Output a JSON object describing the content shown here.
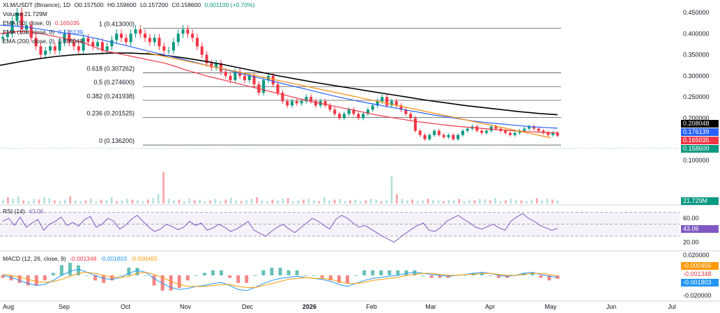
{
  "legend": {
    "symbol": "XLM/USDT (Binance), 1D",
    "o": "O0.157500",
    "h": "H0.159600",
    "l": "L0.157200",
    "c": "C0.158600",
    "chg": "0.001100 (+0.70%)",
    "volume": "Volume 21.729M",
    "ema50": "EMA (50, close, 0)",
    "ema50_val": "0.165035",
    "ema100": "EMA (100, close, 0)",
    "ema100_val": "0.176139",
    "ema200": "EMA (200, close, 0)",
    "ema200_val": "0.208048",
    "rsi": "RSI (14)",
    "rsi_val": "43.06",
    "macd": "MACD (12, 26, close, 9)",
    "macd_hist": "-0.001348",
    "macd_line": "-0.001803",
    "macd_signal": "-0.000455"
  },
  "tags": {
    "ema200": "0.208048",
    "ema100": "0.176139",
    "ema50": "0.165035",
    "close": "0.158600",
    "volume": "21.729M",
    "rsi": "43.06",
    "macd_signal": "-0.000455",
    "macd_hist": "-0.001348",
    "macd_line": "-0.001803"
  },
  "colors": {
    "up": "#089981",
    "down": "#f23645",
    "ema50": "#f23645",
    "ema100": "#2962ff",
    "ema200": "#000000",
    "trend": "#f7931a",
    "rsi": "#7e57c2",
    "macd": "#2196f3",
    "signal": "#ff9800"
  },
  "chart_data": {
    "type": "candlestick",
    "price_axis": [
      "0.450000",
      "0.400000",
      "0.350000",
      "0.300000",
      "0.250000",
      "0.200000",
      "0.150000",
      "0.100000"
    ],
    "price_axis_values": [
      0.45,
      0.4,
      0.35,
      0.3,
      0.25,
      0.2,
      0.15,
      0.1
    ],
    "x_labels": [
      "Aug",
      "Sep",
      "Oct",
      "Nov",
      "Dec",
      "2026",
      "Feb",
      "Mar",
      "Apr",
      "May",
      "Jun",
      "Jul"
    ],
    "fib_levels": [
      {
        "label": "1 (0.413000)",
        "value": 0.413
      },
      {
        "label": "0.618 (0.307262)",
        "value": 0.307262
      },
      {
        "label": "0.5 (0.274600)",
        "value": 0.2746
      },
      {
        "label": "0.382 (0.241938)",
        "value": 0.241938
      },
      {
        "label": "0.236 (0.201525)",
        "value": 0.201525
      },
      {
        "label": "0 (0.136200)",
        "value": 0.1362
      }
    ],
    "rsi_axis": [
      "60.00",
      "40.00",
      "20.00"
    ],
    "rsi_axis_values": [
      60,
      40,
      20
    ],
    "rsi_bands": [
      70,
      50,
      30
    ],
    "macd_axis": [
      "0.020000",
      "-0.020000"
    ],
    "macd_axis_values": [
      0.02,
      -0.02
    ],
    "close_price": 0.1586,
    "closes": [
      0.392,
      0.4,
      0.43,
      0.45,
      0.41,
      0.42,
      0.39,
      0.37,
      0.35,
      0.36,
      0.37,
      0.36,
      0.38,
      0.4,
      0.38,
      0.37,
      0.36,
      0.39,
      0.38,
      0.37,
      0.38,
      0.36,
      0.37,
      0.385,
      0.4,
      0.39,
      0.38,
      0.4,
      0.41,
      0.4,
      0.39,
      0.38,
      0.39,
      0.37,
      0.36,
      0.36,
      0.38,
      0.4,
      0.41,
      0.4,
      0.39,
      0.37,
      0.35,
      0.33,
      0.32,
      0.33,
      0.31,
      0.3,
      0.29,
      0.31,
      0.3,
      0.29,
      0.3,
      0.28,
      0.26,
      0.29,
      0.3,
      0.28,
      0.26,
      0.24,
      0.23,
      0.24,
      0.235,
      0.24,
      0.25,
      0.24,
      0.23,
      0.24,
      0.23,
      0.22,
      0.21,
      0.2,
      0.21,
      0.22,
      0.21,
      0.2,
      0.21,
      0.22,
      0.23,
      0.24,
      0.25,
      0.23,
      0.24,
      0.23,
      0.22,
      0.21,
      0.2,
      0.17,
      0.16,
      0.15,
      0.16,
      0.17,
      0.16,
      0.155,
      0.16,
      0.15,
      0.16,
      0.17,
      0.175,
      0.18,
      0.17,
      0.165,
      0.17,
      0.18,
      0.175,
      0.17,
      0.165,
      0.16,
      0.165,
      0.17,
      0.175,
      0.18,
      0.175,
      0.17,
      0.165,
      0.16,
      0.165,
      0.1586
    ],
    "ema50": [
      0.4,
      0.404,
      0.405,
      0.404,
      0.4,
      0.395,
      0.39,
      0.385,
      0.38,
      0.37,
      0.36,
      0.355,
      0.35,
      0.345,
      0.34,
      0.335,
      0.33,
      0.322,
      0.314,
      0.307,
      0.3,
      0.294,
      0.288,
      0.282,
      0.276,
      0.27,
      0.264,
      0.258,
      0.252,
      0.246,
      0.24,
      0.235,
      0.23,
      0.225,
      0.22,
      0.215,
      0.21,
      0.205,
      0.201,
      0.197,
      0.193,
      0.19,
      0.187,
      0.184,
      0.181,
      0.179,
      0.177,
      0.175,
      0.173,
      0.171,
      0.17,
      0.168,
      0.167,
      0.166,
      0.165035
    ],
    "ema100": [
      0.42,
      0.418,
      0.415,
      0.41,
      0.405,
      0.4,
      0.395,
      0.388,
      0.38,
      0.372,
      0.364,
      0.356,
      0.348,
      0.34,
      0.332,
      0.324,
      0.316,
      0.308,
      0.3,
      0.292,
      0.284,
      0.276,
      0.268,
      0.26,
      0.252,
      0.245,
      0.238,
      0.232,
      0.226,
      0.22,
      0.214,
      0.208,
      0.203,
      0.198,
      0.193,
      0.189,
      0.186,
      0.183,
      0.18,
      0.178,
      0.176139
    ],
    "ema200": [
      0.325,
      0.333,
      0.34,
      0.346,
      0.35,
      0.352,
      0.354,
      0.354,
      0.352,
      0.348,
      0.342,
      0.335,
      0.327,
      0.318,
      0.309,
      0.3,
      0.292,
      0.284,
      0.277,
      0.27,
      0.263,
      0.256,
      0.249,
      0.242,
      0.236,
      0.23,
      0.225,
      0.22,
      0.215,
      0.211,
      0.208048
    ],
    "trendline": [
      0.355,
      0.1535
    ],
    "volume": [
      5,
      8,
      6,
      9,
      4,
      3,
      6,
      5,
      8,
      7,
      4,
      3,
      5,
      9,
      4,
      3,
      4,
      6,
      3,
      5,
      4,
      8,
      3,
      4,
      6,
      5,
      4,
      3,
      5,
      7,
      12,
      40,
      6,
      4,
      5,
      3,
      6,
      4,
      5,
      3,
      4,
      6,
      3,
      5,
      7,
      4,
      3,
      5,
      6,
      8,
      4,
      3,
      5,
      4,
      6,
      7,
      3,
      4,
      5,
      6,
      4,
      3,
      8,
      4,
      5,
      6,
      3,
      4,
      5,
      3,
      4,
      6,
      5,
      3,
      4,
      35,
      12,
      6,
      4,
      5,
      3,
      4,
      6,
      5,
      4,
      3,
      5,
      4,
      6,
      3,
      5,
      4,
      6,
      5,
      4,
      7,
      3,
      4,
      6,
      5,
      4,
      3,
      5,
      7,
      4,
      6,
      5,
      4
    ],
    "rsi": [
      55,
      60,
      48,
      62,
      45,
      52,
      58,
      40,
      50,
      55,
      62,
      48,
      53,
      47,
      58,
      63,
      45,
      50,
      60,
      55,
      42,
      48,
      58,
      65,
      55,
      45,
      38,
      42,
      50,
      46,
      41,
      45,
      55,
      48,
      52,
      40,
      44,
      50,
      45,
      38,
      42,
      48,
      55,
      40,
      35,
      30,
      38,
      45,
      50,
      42,
      36,
      44,
      52,
      60,
      55,
      48,
      42,
      58,
      65,
      60,
      52,
      45,
      48,
      42,
      36,
      30,
      25,
      20,
      28,
      35,
      42,
      48,
      52,
      40,
      38,
      45,
      55,
      60,
      65,
      58,
      52,
      45,
      42,
      46,
      50,
      44,
      40,
      55,
      62,
      68,
      60,
      55,
      48,
      44,
      40,
      43.06
    ],
    "macd_line": [
      0.0,
      -0.002,
      -0.005,
      -0.008,
      -0.01,
      -0.009,
      -0.005,
      0.0,
      0.004,
      0.006,
      0.003,
      0.0,
      -0.003,
      -0.004,
      -0.002,
      0.002,
      0.005,
      0.003,
      -0.003,
      -0.008,
      -0.012,
      -0.014,
      -0.013,
      -0.011,
      -0.01,
      -0.008,
      -0.007,
      -0.01,
      -0.014,
      -0.015,
      -0.012,
      -0.008,
      -0.005,
      -0.003,
      -0.002,
      -0.001,
      -0.002,
      -0.003,
      -0.004,
      -0.006,
      -0.009,
      -0.011,
      -0.008,
      -0.005,
      -0.003,
      -0.002,
      -0.001,
      0.0,
      0.002,
      0.003,
      0.002,
      0.001,
      0.0,
      -0.001,
      0.0,
      0.001,
      0.002,
      0.003,
      0.002,
      0.0,
      -0.001,
      0.0,
      0.002,
      0.003,
      0.001,
      -0.001,
      -0.001803
    ],
    "macd_signal": [
      0.001,
      0.0,
      -0.002,
      -0.004,
      -0.006,
      -0.007,
      -0.006,
      -0.004,
      -0.001,
      0.002,
      0.003,
      0.002,
      0.0,
      -0.002,
      -0.002,
      -0.001,
      0.002,
      0.003,
      0.001,
      -0.002,
      -0.006,
      -0.009,
      -0.011,
      -0.011,
      -0.011,
      -0.01,
      -0.009,
      -0.009,
      -0.011,
      -0.012,
      -0.012,
      -0.01,
      -0.008,
      -0.006,
      -0.004,
      -0.003,
      -0.002,
      -0.003,
      -0.003,
      -0.004,
      -0.006,
      -0.008,
      -0.008,
      -0.007,
      -0.005,
      -0.004,
      -0.003,
      -0.002,
      0.0,
      0.001,
      0.002,
      0.002,
      0.001,
      0.0,
      0.0,
      0.001,
      0.001,
      0.002,
      0.002,
      0.001,
      0.0,
      0.0,
      0.001,
      0.002,
      0.002,
      0.001,
      -0.000455
    ]
  }
}
